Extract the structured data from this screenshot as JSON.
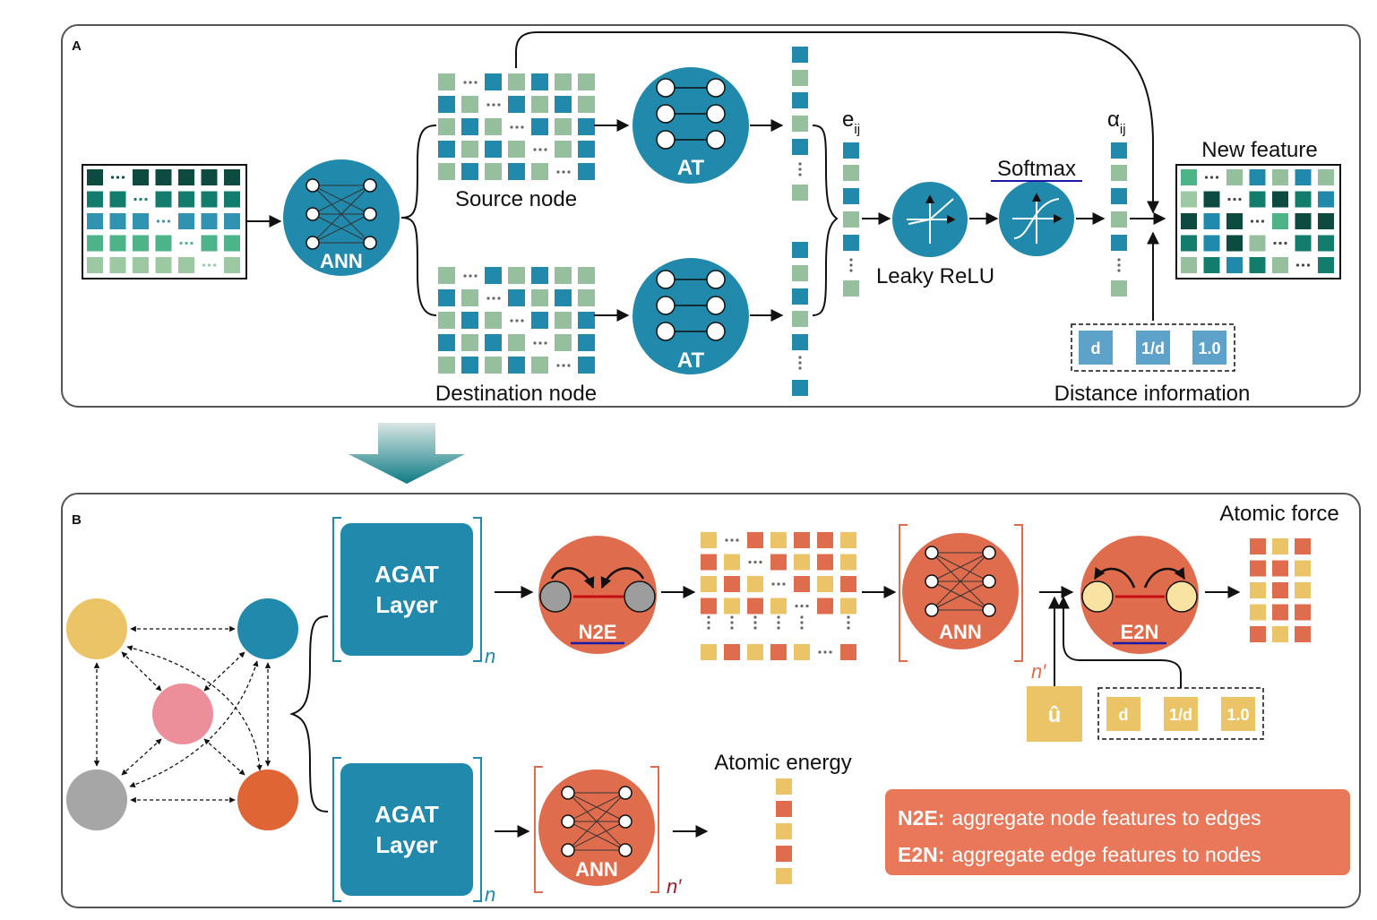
{
  "panel_a": {
    "letter": "A",
    "ann_label": "ANN",
    "at_label": "AT",
    "source_node": "Source node",
    "destination_node": "Destination node",
    "e_symbol": "e",
    "e_subscript": "ij",
    "leaky_relu": "Leaky ReLU",
    "softmax": "Softmax",
    "alpha_symbol": "α",
    "alpha_subscript": "ij",
    "new_feature": "New feature",
    "distance_information": "Distance information",
    "distance_items": [
      "d",
      "1/d",
      "1.0"
    ]
  },
  "panel_b": {
    "letter": "B",
    "agat_line1": "AGAT",
    "agat_line2": "Layer",
    "n_label": "n",
    "n_prime_label": "n′",
    "n2e_label": "N2E",
    "e2n_label": "E2N",
    "ann_label": "ANN",
    "atomic_force": "Atomic force",
    "atomic_energy": "Atomic energy",
    "u_hat": "û",
    "distance_items": [
      "d",
      "1/d",
      "1.0"
    ],
    "legend": [
      {
        "key": "N2E:",
        "text": "aggregate node features to edges"
      },
      {
        "key": "E2N:",
        "text": "aggregate edge features to nodes"
      }
    ]
  },
  "colors": {
    "teal": "#2189ab",
    "orange": "#e06c4e",
    "yellow": "#ecc468",
    "pink": "#ec8f9a",
    "gray": "#a6a6a6",
    "dark_orange": "#df6535",
    "distance_blue": "#5ea1c9",
    "legend_bg": "#e87859"
  }
}
